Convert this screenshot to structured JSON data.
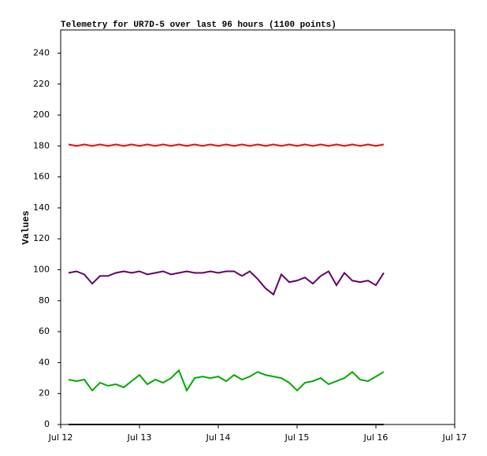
{
  "chart_data": {
    "type": "line",
    "title": "Telemetry for UR7D-5 over last 96 hours (1100 points)",
    "y_label": "Values",
    "x": [
      12.1,
      12.2,
      12.3,
      12.4,
      12.5,
      12.6,
      12.7,
      12.8,
      12.9,
      13.0,
      13.1,
      13.2,
      13.3,
      13.4,
      13.5,
      13.6,
      13.7,
      13.8,
      13.9,
      14.0,
      14.1,
      14.2,
      14.3,
      14.4,
      14.5,
      14.6,
      14.7,
      14.8,
      14.9,
      15.0,
      15.1,
      15.2,
      15.3,
      15.4,
      15.5,
      15.6,
      15.7,
      15.8,
      15.9,
      16.0,
      16.1
    ],
    "series": [
      {
        "color": "#ff0000",
        "values": [
          181,
          180,
          181,
          180,
          181,
          180,
          181,
          180,
          181,
          180,
          181,
          180,
          181,
          180,
          181,
          180,
          181,
          180,
          181,
          180,
          181,
          180,
          181,
          180,
          181,
          180,
          181,
          180,
          181,
          180,
          181,
          180,
          181,
          180,
          181,
          180,
          181,
          180,
          181,
          180,
          181
        ]
      },
      {
        "color": "#660066",
        "values": [
          98,
          99,
          97,
          91,
          96,
          96,
          98,
          99,
          98,
          99,
          97,
          98,
          99,
          97,
          98,
          99,
          98,
          98,
          99,
          98,
          99,
          99,
          96,
          99,
          94,
          88,
          84,
          97,
          92,
          93,
          95,
          91,
          96,
          99,
          90,
          98,
          93,
          92,
          93,
          90,
          98
        ]
      },
      {
        "color": "#00aa00",
        "values": [
          29,
          28,
          29,
          22,
          27,
          25,
          26,
          24,
          28,
          32,
          26,
          29,
          27,
          30,
          35,
          22,
          30,
          31,
          30,
          31,
          28,
          32,
          29,
          31,
          34,
          32,
          31,
          30,
          27,
          22,
          27,
          28,
          30,
          26,
          28,
          30,
          34,
          29,
          28,
          31,
          34
        ]
      },
      {
        "color": "#000000",
        "values": [
          0,
          0,
          0,
          0,
          0,
          0,
          0,
          0,
          0,
          0,
          0,
          0,
          0,
          0,
          0,
          0,
          0,
          0,
          0,
          0,
          0,
          0,
          0,
          0,
          0,
          0,
          0,
          0,
          0,
          0,
          0,
          0,
          0,
          0,
          0,
          0,
          0,
          0,
          0,
          0,
          0
        ]
      }
    ],
    "xlim": [
      12,
      17
    ],
    "xticks": [
      {
        "value": 12,
        "label": "Jul 12"
      },
      {
        "value": 13,
        "label": "Jul 13"
      },
      {
        "value": 14,
        "label": "Jul 14"
      },
      {
        "value": 15,
        "label": "Jul 15"
      },
      {
        "value": 16,
        "label": "Jul 16"
      },
      {
        "value": 17,
        "label": "Jul 17"
      }
    ],
    "ylim": [
      0,
      255
    ],
    "yticks": [
      0,
      20,
      40,
      60,
      80,
      100,
      120,
      140,
      160,
      180,
      200,
      220,
      240
    ]
  }
}
